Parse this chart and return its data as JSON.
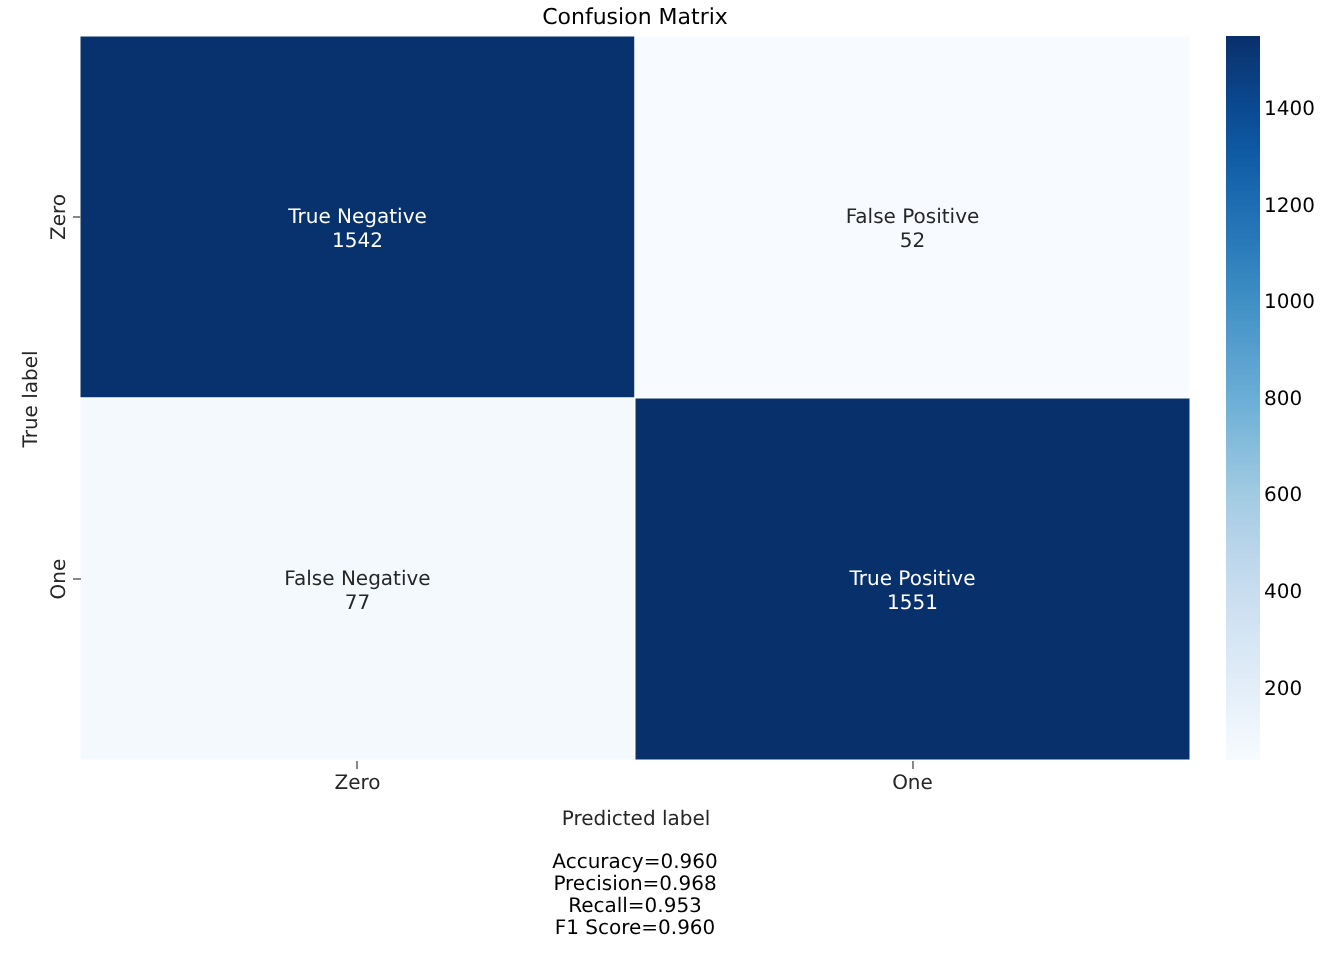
{
  "chart_data": {
    "type": "heatmap",
    "title": "Confusion Matrix",
    "xlabel": "Predicted label",
    "ylabel": "True label",
    "clabel": null,
    "categories": [
      "Zero",
      "One"
    ],
    "y_categories": [
      "Zero",
      "One"
    ],
    "cells": [
      [
        1542,
        52
      ],
      [
        77,
        1551
      ]
    ],
    "cell_labels": [
      [
        "True Negative\n1542",
        "False Positive\n52"
      ],
      [
        "False Negative\n77",
        "True Positive\n1551"
      ]
    ],
    "clim": [
      52,
      1551
    ],
    "cticks": [
      200,
      400,
      600,
      800,
      1000,
      1200,
      1400
    ],
    "annotations": [
      "Accuracy=0.960",
      "Precision=0.968",
      "Recall=0.953",
      "F1 Score=0.960"
    ]
  }
}
